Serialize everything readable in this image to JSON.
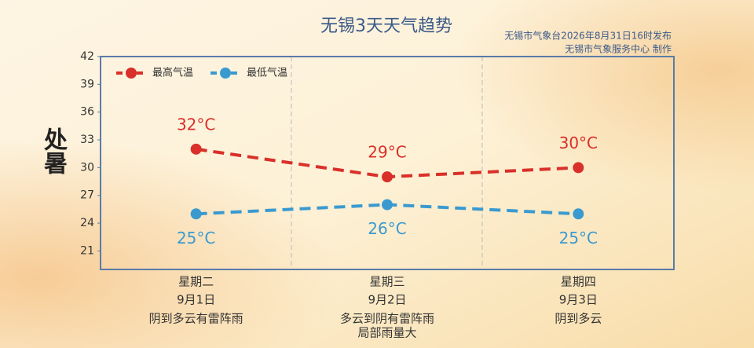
{
  "chart_data": {
    "type": "line",
    "title": "无锡3天天气趋势",
    "subtitle": [
      "无锡市气象台2026年8月31日16时发布",
      "无锡市气象服务中心  制作"
    ],
    "decoration": "处暑",
    "categories": [
      "星期二",
      "星期三",
      "星期四"
    ],
    "dates": [
      "9月1日",
      "9月2日",
      "9月3日"
    ],
    "weather": [
      [
        "阴到多云有雷阵雨"
      ],
      [
        "多云到阴有雷阵雨",
        "局部雨量大"
      ],
      [
        "阴到多云"
      ]
    ],
    "series": [
      {
        "name": "最高气温",
        "color": "#d9302a",
        "values": [
          32,
          29,
          30
        ],
        "value_labels": [
          "32°C",
          "29°C",
          "30°C"
        ]
      },
      {
        "name": "最低气温",
        "color": "#3a9ad0",
        "values": [
          25,
          26,
          25
        ],
        "value_labels": [
          "25°C",
          "26°C",
          "25°C"
        ]
      }
    ],
    "ylim": [
      19,
      42
    ],
    "yticks": [
      21,
      24,
      27,
      30,
      33,
      36,
      39,
      42
    ],
    "legend": "upper left"
  }
}
